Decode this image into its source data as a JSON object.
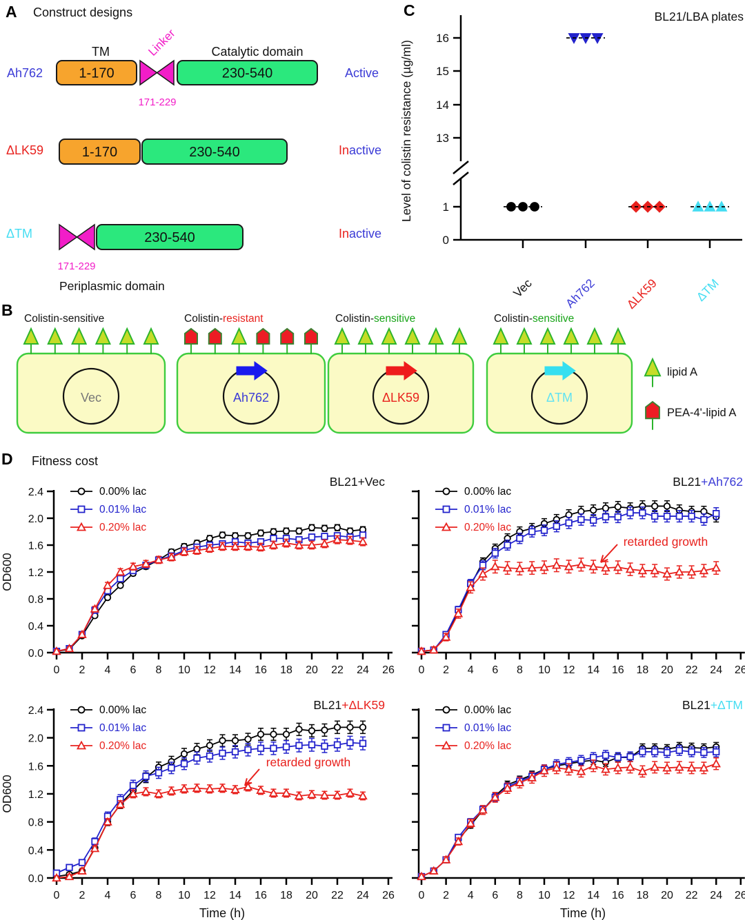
{
  "figure": {
    "panels": {
      "A": {
        "label": "A",
        "title": "Construct designs",
        "headers": {
          "tm": "TM",
          "linker": "Linker",
          "catalytic": "Catalytic domain"
        },
        "footer": "Periplasmic domain",
        "colors": {
          "tm_box": "#F7A42D",
          "catalytic_box": "#2BE87D",
          "linker": "#F21DC8"
        },
        "rows": [
          {
            "name": "Ah762",
            "name_color": "#3B3BD6",
            "segments": [
              {
                "kind": "tm",
                "label": "1-170"
              },
              {
                "kind": "linker"
              },
              {
                "kind": "catalytic",
                "label": "230-540"
              }
            ],
            "linker_range": "171-229",
            "status": [
              {
                "text": "Active",
                "color": "#3B3BD6"
              }
            ]
          },
          {
            "name": "ΔLK59",
            "name_color": "#E8211D",
            "segments": [
              {
                "kind": "tm",
                "label": "1-170"
              },
              {
                "kind": "catalytic",
                "label": "230-540"
              }
            ],
            "linker_range": null,
            "status": [
              {
                "text": "In",
                "color": "#E8211D"
              },
              {
                "text": "active",
                "color": "#3B3BD6"
              }
            ]
          },
          {
            "name": "ΔTM",
            "name_color": "#45DDF2",
            "segments": [
              {
                "kind": "linker"
              },
              {
                "kind": "catalytic",
                "label": "230-540"
              }
            ],
            "linker_range": "171-229",
            "status": [
              {
                "text": "In",
                "color": "#E8211D"
              },
              {
                "text": "active",
                "color": "#3B3BD6"
              }
            ]
          }
        ]
      },
      "B": {
        "label": "B",
        "cells": [
          {
            "title_parts": [
              {
                "text": "Colistin-sensitive",
                "color": "#111111"
              }
            ],
            "plasmid": "Vec",
            "plasmid_color": "#777777",
            "arrow_color": null,
            "pins": [
              "tri",
              "tri",
              "tri",
              "tri",
              "tri",
              "tri"
            ]
          },
          {
            "title_parts": [
              {
                "text": "Colistin-",
                "color": "#111111"
              },
              {
                "text": "resistant",
                "color": "#E8211D"
              }
            ],
            "plasmid": "Ah762",
            "plasmid_color": "#3B3BD6",
            "arrow_color": "#1A1AEE",
            "pins": [
              "pent",
              "pent",
              "tri",
              "pent",
              "pent",
              "pent"
            ]
          },
          {
            "title_parts": [
              {
                "text": "Colistin-",
                "color": "#111111"
              },
              {
                "text": "sensitive",
                "color": "#17A317"
              }
            ],
            "plasmid": "ΔLK59",
            "plasmid_color": "#E8211D",
            "arrow_color": "#EE1C1C",
            "pins": [
              "tri",
              "tri",
              "tri",
              "tri",
              "tri",
              "tri"
            ]
          },
          {
            "title_parts": [
              {
                "text": "Colistin-",
                "color": "#111111"
              },
              {
                "text": "sensitive",
                "color": "#17A317"
              }
            ],
            "plasmid": "ΔTM",
            "plasmid_color": "#62E2F2",
            "arrow_color": "#35DFF0",
            "pins": [
              "tri",
              "tri",
              "tri",
              "tri",
              "tri",
              "tri"
            ]
          }
        ],
        "legend": [
          {
            "marker": "tri",
            "label": "lipid A"
          },
          {
            "marker": "pent",
            "label": "PEA-4'-lipid A"
          }
        ],
        "colors": {
          "cell_fill": "#FBFAC5",
          "cell_stroke": "#3ECC3E",
          "lipidA_fill": "#C5DC28",
          "lipidA_stroke": "#2CB42C",
          "pea_fill": "#ED1C24",
          "pea_stroke": "#3C8031"
        }
      },
      "C": {
        "label": "C"
      },
      "D": {
        "label": "D",
        "title": "Fitness cost"
      }
    }
  },
  "chart_data": [
    {
      "id": "colistin",
      "type": "scatter",
      "title": "BL21/LBA plates",
      "ylabel": "Level of colistin resistance (µg/ml)",
      "categories": [
        "Vec",
        "Ah762",
        "ΔLK59",
        "ΔTM"
      ],
      "category_colors": [
        "#111111",
        "#3B3BD6",
        "#E8211D",
        "#45DDF2"
      ],
      "marker_colors": [
        "#000000",
        "#2222CC",
        "#E8211D",
        "#45DDF2"
      ],
      "markers": [
        "circle",
        "triangle-down",
        "diamond",
        "triangle-up"
      ],
      "values": [
        [
          1,
          1,
          1
        ],
        [
          16,
          16,
          16
        ],
        [
          1,
          1,
          1
        ],
        [
          1,
          1,
          1
        ]
      ],
      "y_axis": {
        "upper_ticks": [
          13,
          14,
          15,
          16
        ],
        "lower_ticks": [
          0,
          1
        ],
        "axis_break": true
      }
    },
    {
      "id": "bl21-vec",
      "type": "line",
      "title_parts": [
        {
          "text": "BL21+Vec",
          "color": "#111111"
        }
      ],
      "ylabel": "OD600",
      "xlabel": "Time (h)",
      "x": [
        0,
        1,
        2,
        3,
        4,
        5,
        6,
        7,
        8,
        9,
        10,
        11,
        12,
        13,
        14,
        15,
        16,
        17,
        18,
        19,
        20,
        21,
        22,
        23,
        24
      ],
      "xticks": [
        0,
        2,
        4,
        6,
        8,
        10,
        12,
        14,
        16,
        18,
        20,
        22,
        24,
        26
      ],
      "ylim": [
        0,
        2.4
      ],
      "yticks": [
        0.0,
        0.4,
        0.8,
        1.2,
        1.6,
        2.0,
        2.4
      ],
      "series": [
        {
          "name": "0.00% lac",
          "color": "#000000",
          "marker": "circle",
          "err": 0.05,
          "values": [
            0.02,
            0.05,
            0.25,
            0.55,
            0.82,
            1.0,
            1.18,
            1.28,
            1.38,
            1.5,
            1.58,
            1.63,
            1.7,
            1.75,
            1.74,
            1.74,
            1.78,
            1.8,
            1.81,
            1.81,
            1.86,
            1.85,
            1.86,
            1.81,
            1.83
          ]
        },
        {
          "name": "0.01% lac",
          "color": "#2222CC",
          "marker": "square",
          "err": 0.05,
          "values": [
            0.02,
            0.06,
            0.27,
            0.63,
            0.92,
            1.1,
            1.22,
            1.3,
            1.38,
            1.44,
            1.52,
            1.57,
            1.6,
            1.62,
            1.65,
            1.63,
            1.65,
            1.7,
            1.7,
            1.68,
            1.72,
            1.73,
            1.74,
            1.72,
            1.75
          ]
        },
        {
          "name": "0.20% lac",
          "color": "#E8211D",
          "marker": "triangle-up",
          "err": 0.07,
          "values": [
            0.02,
            0.06,
            0.27,
            0.65,
            1.0,
            1.2,
            1.28,
            1.32,
            1.38,
            1.42,
            1.5,
            1.52,
            1.55,
            1.58,
            1.58,
            1.58,
            1.57,
            1.6,
            1.63,
            1.6,
            1.6,
            1.62,
            1.68,
            1.67,
            1.65
          ]
        }
      ],
      "annotation": null
    },
    {
      "id": "bl21-ah762",
      "type": "line",
      "title_parts": [
        {
          "text": "BL21",
          "color": "#111111"
        },
        {
          "text": "+Ah762",
          "color": "#3B3BD6"
        }
      ],
      "ylabel": "OD600",
      "xlabel": "Time (h)",
      "x": [
        0,
        1,
        2,
        3,
        4,
        5,
        6,
        7,
        8,
        9,
        10,
        11,
        12,
        13,
        14,
        15,
        16,
        17,
        18,
        19,
        20,
        21,
        22,
        23,
        24
      ],
      "xticks": [
        0,
        2,
        4,
        6,
        8,
        10,
        12,
        14,
        16,
        18,
        20,
        22,
        24,
        26
      ],
      "ylim": [
        0,
        2.4
      ],
      "yticks": [
        0.0,
        0.4,
        0.8,
        1.2,
        1.6,
        2.0,
        2.4
      ],
      "series": [
        {
          "name": "0.00% lac",
          "color": "#000000",
          "marker": "circle",
          "err": 0.08,
          "values": [
            0.02,
            0.04,
            0.25,
            0.62,
            1.0,
            1.35,
            1.55,
            1.7,
            1.8,
            1.85,
            1.92,
            1.98,
            2.05,
            2.1,
            2.12,
            2.15,
            2.17,
            2.15,
            2.18,
            2.18,
            2.18,
            2.12,
            2.1,
            2.1,
            2.02
          ]
        },
        {
          "name": "0.01% lac",
          "color": "#2222CC",
          "marker": "square",
          "err": 0.09,
          "values": [
            0.02,
            0.04,
            0.27,
            0.64,
            1.03,
            1.3,
            1.48,
            1.6,
            1.7,
            1.8,
            1.82,
            1.88,
            1.93,
            1.98,
            1.97,
            2.02,
            2.02,
            2.08,
            2.08,
            2.03,
            2.03,
            2.03,
            2.03,
            1.98,
            2.07
          ]
        },
        {
          "name": "0.20% lac",
          "color": "#E8211D",
          "marker": "triangle-up",
          "err": 0.13,
          "values": [
            0.02,
            0.04,
            0.23,
            0.58,
            0.97,
            1.17,
            1.28,
            1.26,
            1.25,
            1.26,
            1.27,
            1.3,
            1.28,
            1.31,
            1.28,
            1.26,
            1.27,
            1.24,
            1.22,
            1.22,
            1.17,
            1.2,
            1.2,
            1.22,
            1.26
          ]
        }
      ],
      "annotation": {
        "text": "retarded growth",
        "color": "#E8211D"
      }
    },
    {
      "id": "bl21-dlk59",
      "type": "line",
      "title_parts": [
        {
          "text": "BL21",
          "color": "#111111"
        },
        {
          "text": "+ΔLK59",
          "color": "#E8211D"
        }
      ],
      "ylabel": "OD600",
      "xlabel": "Time (h)",
      "x": [
        0,
        1,
        2,
        3,
        4,
        5,
        6,
        7,
        8,
        9,
        10,
        11,
        12,
        13,
        14,
        15,
        16,
        17,
        18,
        19,
        20,
        21,
        22,
        23,
        24
      ],
      "xticks": [
        0,
        2,
        4,
        6,
        8,
        10,
        12,
        14,
        16,
        18,
        20,
        22,
        24,
        26
      ],
      "ylim": [
        0,
        2.4
      ],
      "yticks": [
        0.0,
        0.4,
        0.8,
        1.2,
        1.6,
        2.0,
        2.4
      ],
      "series": [
        {
          "name": "0.00% lac",
          "color": "#000000",
          "marker": "circle",
          "err": 0.09,
          "values": [
            0.02,
            0.05,
            0.1,
            0.43,
            0.8,
            1.05,
            1.25,
            1.43,
            1.58,
            1.66,
            1.77,
            1.84,
            1.89,
            1.96,
            1.96,
            1.98,
            2.05,
            2.05,
            2.05,
            2.12,
            2.1,
            2.11,
            2.15,
            2.15,
            2.15
          ]
        },
        {
          "name": "0.01% lac",
          "color": "#2222CC",
          "marker": "square",
          "err": 0.1,
          "values": [
            0.07,
            0.15,
            0.22,
            0.52,
            0.88,
            1.12,
            1.32,
            1.45,
            1.5,
            1.57,
            1.63,
            1.71,
            1.74,
            1.78,
            1.8,
            1.83,
            1.85,
            1.85,
            1.87,
            1.89,
            1.9,
            1.88,
            1.9,
            1.93,
            1.92
          ]
        },
        {
          "name": "0.20% lac",
          "color": "#E8211D",
          "marker": "triangle-up",
          "err": 0.08,
          "values": [
            0.0,
            0.02,
            0.1,
            0.42,
            0.8,
            1.05,
            1.2,
            1.23,
            1.2,
            1.24,
            1.27,
            1.28,
            1.27,
            1.28,
            1.26,
            1.3,
            1.25,
            1.21,
            1.21,
            1.17,
            1.19,
            1.18,
            1.18,
            1.21,
            1.17
          ]
        }
      ],
      "annotation": {
        "text": "retarded growth",
        "color": "#E8211D"
      }
    },
    {
      "id": "bl21-dtm",
      "type": "line",
      "title_parts": [
        {
          "text": "BL21",
          "color": "#111111"
        },
        {
          "text": "+ΔTM",
          "color": "#45DDF2"
        }
      ],
      "ylabel": "OD600",
      "xlabel": "Time (h)",
      "x": [
        0,
        1,
        2,
        3,
        4,
        5,
        6,
        7,
        8,
        9,
        10,
        11,
        12,
        13,
        14,
        15,
        16,
        17,
        18,
        19,
        20,
        21,
        22,
        23,
        24
      ],
      "xticks": [
        0,
        2,
        4,
        6,
        8,
        10,
        12,
        14,
        16,
        18,
        20,
        22,
        24,
        26
      ],
      "ylim": [
        0,
        2.4
      ],
      "yticks": [
        0.0,
        0.4,
        0.8,
        1.2,
        1.6,
        2.0,
        2.4
      ],
      "series": [
        {
          "name": "0.00% lac",
          "color": "#000000",
          "marker": "circle",
          "err": 0.07,
          "values": [
            0.02,
            0.1,
            0.26,
            0.55,
            0.75,
            0.97,
            1.17,
            1.33,
            1.4,
            1.47,
            1.55,
            1.6,
            1.63,
            1.66,
            1.68,
            1.65,
            1.72,
            1.72,
            1.85,
            1.85,
            1.84,
            1.87,
            1.86,
            1.85,
            1.87
          ]
        },
        {
          "name": "0.01% lac",
          "color": "#2222CC",
          "marker": "square",
          "err": 0.08,
          "values": [
            0.02,
            0.1,
            0.26,
            0.58,
            0.8,
            0.98,
            1.15,
            1.3,
            1.38,
            1.45,
            1.55,
            1.62,
            1.65,
            1.68,
            1.72,
            1.75,
            1.72,
            1.73,
            1.8,
            1.8,
            1.79,
            1.82,
            1.8,
            1.79,
            1.8
          ]
        },
        {
          "name": "0.20% lac",
          "color": "#E8211D",
          "marker": "triangle-up",
          "err": 0.1,
          "values": [
            0.02,
            0.1,
            0.26,
            0.52,
            0.78,
            0.97,
            1.15,
            1.28,
            1.36,
            1.43,
            1.53,
            1.57,
            1.55,
            1.52,
            1.6,
            1.55,
            1.57,
            1.58,
            1.52,
            1.58,
            1.57,
            1.58,
            1.57,
            1.57,
            1.63
          ]
        }
      ],
      "annotation": null
    }
  ]
}
